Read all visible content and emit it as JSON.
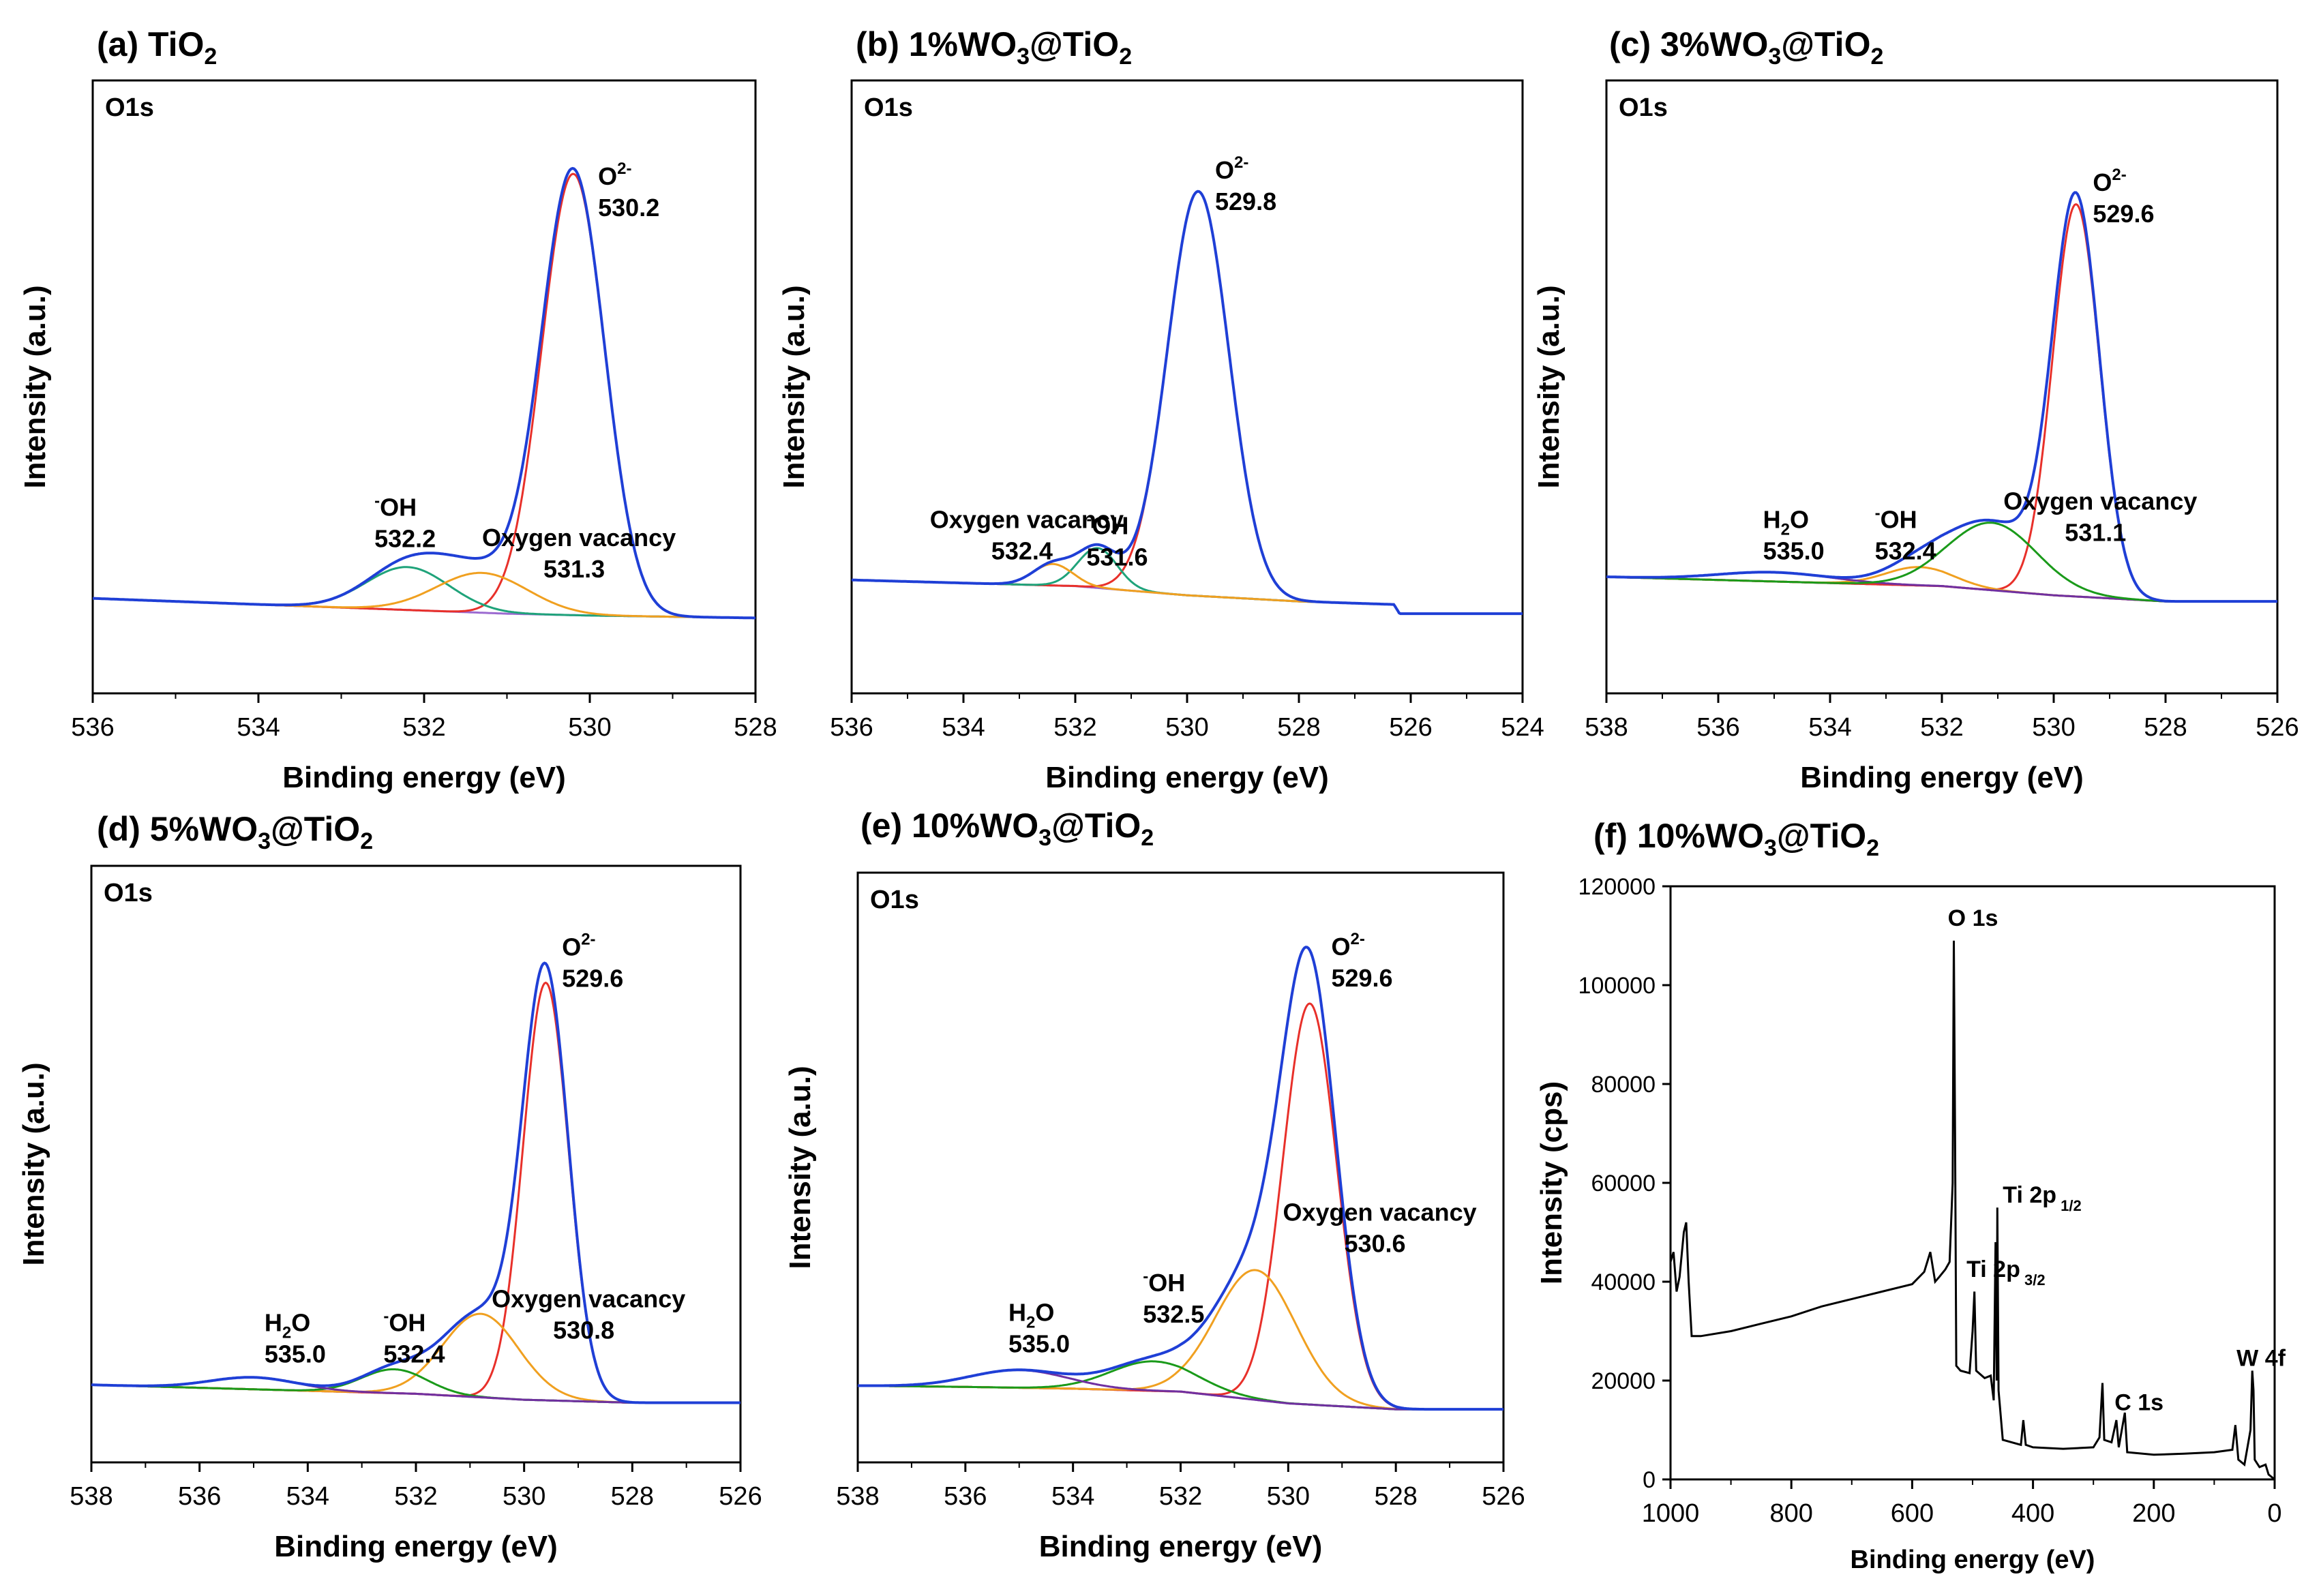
{
  "chart_data": [
    {
      "id": "a",
      "type": "line",
      "title_main": "(a) TiO",
      "title_sub": "2",
      "region": "O1s",
      "xlabel": "Binding energy (eV)",
      "ylabel": "Intensity (a.u.)",
      "xlim": [
        536,
        528
      ],
      "xticks": [
        536,
        534,
        532,
        530,
        528
      ],
      "ylim": [
        0,
        1
      ],
      "background": [
        [
          536,
          0.155
        ],
        [
          535,
          0.15
        ],
        [
          534,
          0.145
        ],
        [
          533,
          0.14
        ],
        [
          532,
          0.135
        ],
        [
          531,
          0.13
        ],
        [
          530,
          0.127
        ],
        [
          529,
          0.125
        ],
        [
          528,
          0.123
        ]
      ],
      "peaks": [
        {
          "name": "O2-",
          "center": 530.2,
          "amp": 0.72,
          "sigma": 0.38,
          "color": "#e8302a"
        },
        {
          "name": "-OH",
          "center": 532.2,
          "amp": 0.07,
          "sigma": 0.5,
          "color": "#1fa37a"
        },
        {
          "name": "Oxygen vacancy",
          "center": 531.3,
          "amp": 0.065,
          "sigma": 0.55,
          "color": "#f0a020"
        }
      ],
      "annotations": [
        {
          "lines": [
            "O",
            "530.2"
          ],
          "sup": "2-",
          "x": 529.9,
          "y": 0.83
        },
        {
          "lines": [
            "OH",
            "532.2"
          ],
          "pre": "-",
          "x": 532.6,
          "y": 0.29
        },
        {
          "lines": [
            "Oxygen vacancy",
            "531.3"
          ],
          "x": 531.3,
          "y": 0.24
        }
      ]
    },
    {
      "id": "b",
      "type": "line",
      "title_main": "(b) 1%WO",
      "title_sub1": "3",
      "title_mid": "@TiO",
      "title_sub": "2",
      "region": "O1s",
      "xlabel": "Binding energy (eV)",
      "ylabel": "Intensity (a.u.)",
      "xlim": [
        536,
        524
      ],
      "xticks": [
        536,
        534,
        532,
        530,
        528,
        526,
        524
      ],
      "ylim": [
        0,
        1
      ],
      "background": [
        [
          536,
          0.185
        ],
        [
          534,
          0.18
        ],
        [
          532,
          0.175
        ],
        [
          530,
          0.16
        ],
        [
          528,
          0.15
        ],
        [
          526.3,
          0.145
        ],
        [
          526.2,
          0.13
        ],
        [
          524,
          0.13
        ]
      ],
      "peaks": [
        {
          "name": "O2-",
          "center": 529.8,
          "amp": 0.66,
          "sigma": 0.55,
          "color": "#e8302a"
        },
        {
          "name": "-OH",
          "center": 531.6,
          "amp": 0.065,
          "sigma": 0.35,
          "color": "#1fa37a"
        },
        {
          "name": "Oxygen vacancy",
          "center": 532.4,
          "amp": 0.035,
          "sigma": 0.35,
          "color": "#f0a020"
        }
      ],
      "annotations": [
        {
          "lines": [
            "O",
            "529.8"
          ],
          "sup": "2-",
          "x": 529.5,
          "y": 0.84
        },
        {
          "lines": [
            "OH",
            "531.6"
          ],
          "pre": "-",
          "x": 531.8,
          "y": 0.26
        },
        {
          "lines": [
            "Oxygen vacancy",
            "532.4"
          ],
          "x": 534.6,
          "y": 0.27
        }
      ]
    },
    {
      "id": "c",
      "type": "line",
      "title_main": "(c) 3%WO",
      "title_sub1": "3",
      "title_mid": "@TiO",
      "title_sub": "2",
      "region": "O1s",
      "xlabel": "Binding energy (eV)",
      "ylabel": "Intensity (a.u.)",
      "xlim": [
        538,
        526
      ],
      "xticks": [
        538,
        536,
        534,
        532,
        530,
        528,
        526
      ],
      "ylim": [
        0,
        1
      ],
      "background": [
        [
          538,
          0.19
        ],
        [
          536,
          0.185
        ],
        [
          534,
          0.18
        ],
        [
          532,
          0.175
        ],
        [
          530,
          0.16
        ],
        [
          528,
          0.15
        ],
        [
          526,
          0.15
        ]
      ],
      "peaks": [
        {
          "name": "O2-",
          "center": 529.6,
          "amp": 0.64,
          "sigma": 0.42,
          "color": "#e8302a"
        },
        {
          "name": "-OH",
          "center": 532.4,
          "amp": 0.03,
          "sigma": 0.6,
          "color": "#f0a020"
        },
        {
          "name": "H2O",
          "center": 535.0,
          "amp": 0.015,
          "sigma": 1.0,
          "color": "#7030a0"
        },
        {
          "name": "Oxygen vacancy",
          "center": 531.1,
          "amp": 0.11,
          "sigma": 0.8,
          "color": "#1a9a1a"
        }
      ],
      "annotations": [
        {
          "lines": [
            "O",
            "529.6"
          ],
          "sup": "2-",
          "x": 529.3,
          "y": 0.82
        },
        {
          "lines": [
            "H2O",
            "535.0"
          ],
          "x": 535.2,
          "y": 0.27
        },
        {
          "lines": [
            "OH",
            "532.4"
          ],
          "pre": "-",
          "x": 533.2,
          "y": 0.27
        },
        {
          "lines": [
            "Oxygen vacancy",
            "531.1"
          ],
          "x": 530.9,
          "y": 0.3
        }
      ]
    },
    {
      "id": "d",
      "type": "line",
      "title_main": "(d) 5%WO",
      "title_sub1": "3",
      "title_mid": "@TiO",
      "title_sub": "2",
      "region": "O1s",
      "xlabel": "Binding energy (eV)",
      "ylabel": "Intensity (a.u.)",
      "xlim": [
        538,
        526
      ],
      "xticks": [
        538,
        536,
        534,
        532,
        530,
        528,
        526
      ],
      "ylim": [
        0,
        1
      ],
      "background": [
        [
          538,
          0.13
        ],
        [
          536,
          0.125
        ],
        [
          534,
          0.12
        ],
        [
          532,
          0.115
        ],
        [
          530,
          0.105
        ],
        [
          528,
          0.1
        ],
        [
          526,
          0.1
        ]
      ],
      "peaks": [
        {
          "name": "O2-",
          "center": 529.6,
          "amp": 0.7,
          "sigma": 0.42,
          "color": "#e8302a"
        },
        {
          "name": "Oxygen vacancy",
          "center": 530.8,
          "amp": 0.14,
          "sigma": 0.7,
          "color": "#f0a020"
        },
        {
          "name": "-OH",
          "center": 532.4,
          "amp": 0.04,
          "sigma": 0.6,
          "color": "#1a9a1a"
        },
        {
          "name": "H2O",
          "center": 535.0,
          "amp": 0.02,
          "sigma": 0.8,
          "color": "#7030a0"
        }
      ],
      "annotations": [
        {
          "lines": [
            "O",
            "529.6"
          ],
          "sup": "2-",
          "x": 529.3,
          "y": 0.85
        },
        {
          "lines": [
            "H2O",
            "535.0"
          ],
          "x": 534.8,
          "y": 0.22
        },
        {
          "lines": [
            "OH",
            "532.4"
          ],
          "pre": "-",
          "x": 532.6,
          "y": 0.22
        },
        {
          "lines": [
            "Oxygen vacancy",
            "530.8"
          ],
          "x": 530.6,
          "y": 0.26
        }
      ]
    },
    {
      "id": "e",
      "type": "line",
      "title_main": "(e) 10%WO",
      "title_sub1": "3",
      "title_mid": "@TiO",
      "title_sub": "2",
      "region": "O1s",
      "xlabel": "Binding energy (eV)",
      "ylabel": "Intensity (a.u.)",
      "xlim": [
        538,
        526
      ],
      "xticks": [
        538,
        536,
        534,
        532,
        530,
        528,
        526
      ],
      "ylim": [
        0,
        1
      ],
      "background": [
        [
          538,
          0.13
        ],
        [
          536,
          0.128
        ],
        [
          534,
          0.125
        ],
        [
          532,
          0.12
        ],
        [
          530,
          0.1
        ],
        [
          528,
          0.09
        ],
        [
          526,
          0.09
        ]
      ],
      "peaks": [
        {
          "name": "O2-",
          "center": 529.6,
          "amp": 0.68,
          "sigma": 0.5,
          "color": "#e8302a"
        },
        {
          "name": "Oxygen vacancy",
          "center": 530.6,
          "amp": 0.22,
          "sigma": 0.75,
          "color": "#f0a020"
        },
        {
          "name": "-OH",
          "center": 532.5,
          "amp": 0.05,
          "sigma": 0.8,
          "color": "#1a9a1a"
        },
        {
          "name": "H2O",
          "center": 535.0,
          "amp": 0.03,
          "sigma": 0.9,
          "color": "#7030a0"
        }
      ],
      "annotations": [
        {
          "lines": [
            "O",
            "529.6"
          ],
          "sup": "2-",
          "x": 529.2,
          "y": 0.86
        },
        {
          "lines": [
            "H2O",
            "535.0"
          ],
          "x": 535.2,
          "y": 0.24
        },
        {
          "lines": [
            "OH",
            "532.5"
          ],
          "pre": "-",
          "x": 532.7,
          "y": 0.29
        },
        {
          "lines": [
            "Oxygen vacancy",
            "530.6"
          ],
          "x": 530.1,
          "y": 0.41
        }
      ]
    },
    {
      "id": "f",
      "type": "line",
      "title_main": "(f) 10%WO",
      "title_sub1": "3",
      "title_mid": "@TiO",
      "title_sub": "2",
      "xlabel": "Binding energy (eV)",
      "ylabel": "Intensity (cps)",
      "xlim": [
        1000,
        0
      ],
      "xticks": [
        1000,
        800,
        600,
        400,
        200,
        0
      ],
      "ylim": [
        0,
        120000
      ],
      "yticks": [
        0,
        20000,
        40000,
        60000,
        80000,
        100000,
        120000
      ],
      "spectrum": [
        [
          1000,
          44000
        ],
        [
          995,
          46000
        ],
        [
          990,
          38000
        ],
        [
          985,
          41000
        ],
        [
          978,
          50000
        ],
        [
          974,
          52000
        ],
        [
          970,
          40000
        ],
        [
          965,
          29000
        ],
        [
          950,
          29000
        ],
        [
          900,
          30000
        ],
        [
          850,
          31500
        ],
        [
          800,
          33000
        ],
        [
          750,
          35000
        ],
        [
          700,
          36500
        ],
        [
          650,
          38000
        ],
        [
          600,
          39500
        ],
        [
          580,
          42000
        ],
        [
          570,
          46000
        ],
        [
          562,
          40000
        ],
        [
          555,
          41000
        ],
        [
          545,
          42500
        ],
        [
          538,
          44000
        ],
        [
          533,
          60000
        ],
        [
          531,
          109000
        ],
        [
          529,
          70000
        ],
        [
          527,
          23000
        ],
        [
          520,
          22000
        ],
        [
          505,
          21500
        ],
        [
          500,
          30000
        ],
        [
          497,
          38000
        ],
        [
          494,
          22000
        ],
        [
          480,
          20500
        ],
        [
          470,
          21000
        ],
        [
          465,
          16000
        ],
        [
          462,
          48000
        ],
        [
          460,
          20000
        ],
        [
          459,
          55000
        ],
        [
          457,
          18000
        ],
        [
          450,
          8000
        ],
        [
          420,
          7000
        ],
        [
          416,
          12000
        ],
        [
          412,
          7000
        ],
        [
          400,
          6500
        ],
        [
          350,
          6200
        ],
        [
          300,
          6500
        ],
        [
          290,
          8500
        ],
        [
          285,
          19500
        ],
        [
          282,
          8000
        ],
        [
          270,
          7500
        ],
        [
          262,
          12000
        ],
        [
          258,
          6500
        ],
        [
          248,
          13500
        ],
        [
          244,
          5500
        ],
        [
          200,
          5000
        ],
        [
          150,
          5200
        ],
        [
          100,
          5500
        ],
        [
          70,
          6000
        ],
        [
          65,
          11000
        ],
        [
          60,
          4000
        ],
        [
          50,
          3000
        ],
        [
          40,
          10000
        ],
        [
          37,
          22000
        ],
        [
          35,
          18000
        ],
        [
          33,
          4000
        ],
        [
          25,
          2500
        ],
        [
          15,
          3000
        ],
        [
          10,
          1000
        ],
        [
          0,
          0
        ]
      ],
      "annotations": [
        {
          "text": "O 1s",
          "x": 541,
          "y": 112000
        },
        {
          "text": "Ti 2p",
          "sub": "1/2",
          "x": 450,
          "y": 56000
        },
        {
          "text": "Ti 2p",
          "sub": "3/2",
          "x": 510,
          "y": 41000
        },
        {
          "text": "C 1s",
          "x": 265,
          "y": 14000
        },
        {
          "text": "W 4f",
          "x": 63,
          "y": 23000
        }
      ]
    }
  ]
}
